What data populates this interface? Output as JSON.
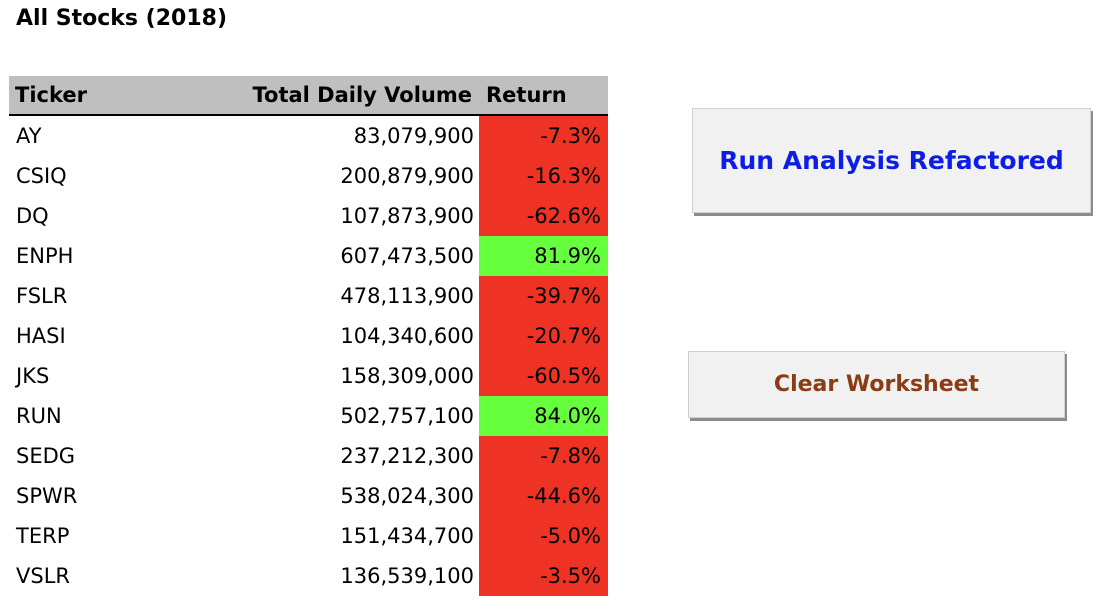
{
  "sheet": {
    "title": "All Stocks (2018)"
  },
  "table": {
    "headers": {
      "ticker": "Ticker",
      "volume": "Total Daily Volume",
      "return": "Return"
    },
    "rows": [
      {
        "ticker": "AY",
        "volume": "83,079,900",
        "return": "-7.3%",
        "status": "negative"
      },
      {
        "ticker": "CSIQ",
        "volume": "200,879,900",
        "return": "-16.3%",
        "status": "negative"
      },
      {
        "ticker": "DQ",
        "volume": "107,873,900",
        "return": "-62.6%",
        "status": "negative"
      },
      {
        "ticker": "ENPH",
        "volume": "607,473,500",
        "return": "81.9%",
        "status": "positive"
      },
      {
        "ticker": "FSLR",
        "volume": "478,113,900",
        "return": "-39.7%",
        "status": "negative"
      },
      {
        "ticker": "HASI",
        "volume": "104,340,600",
        "return": "-20.7%",
        "status": "negative"
      },
      {
        "ticker": "JKS",
        "volume": "158,309,000",
        "return": "-60.5%",
        "status": "negative"
      },
      {
        "ticker": "RUN",
        "volume": "502,757,100",
        "return": "84.0%",
        "status": "positive"
      },
      {
        "ticker": "SEDG",
        "volume": "237,212,300",
        "return": "-7.8%",
        "status": "negative"
      },
      {
        "ticker": "SPWR",
        "volume": "538,024,300",
        "return": "-44.6%",
        "status": "negative"
      },
      {
        "ticker": "TERP",
        "volume": "151,434,700",
        "return": "-5.0%",
        "status": "negative"
      },
      {
        "ticker": "VSLR",
        "volume": "136,539,100",
        "return": "-3.5%",
        "status": "negative"
      }
    ]
  },
  "buttons": {
    "run_label": "Run Analysis Refactored",
    "clear_label": "Clear Worksheet"
  },
  "colors": {
    "header_fill": "#bfbfbf",
    "positive_fill": "#66ff3e",
    "negative_fill": "#ee3324",
    "run_text": "#0c1ee6",
    "clear_text": "#8a3c14",
    "button_face": "#f1f1f1"
  }
}
